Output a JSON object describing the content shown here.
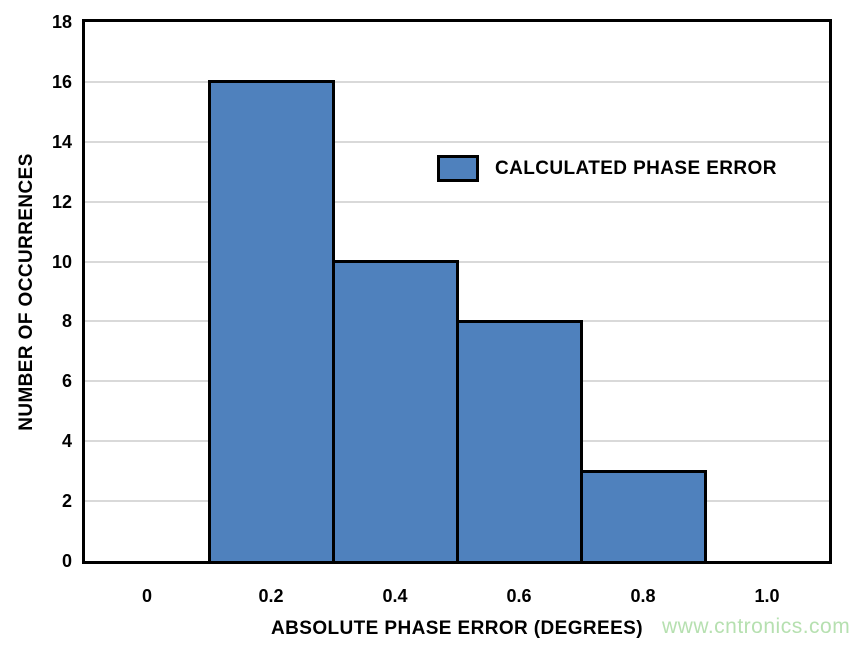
{
  "page": {
    "background": "#ffffff",
    "watermark": "www.cntronics.com",
    "watermark_color": "#b6e0b0"
  },
  "chart_data": {
    "type": "bar",
    "title": "",
    "xlabel": "ABSOLUTE PHASE ERROR (DEGREES)",
    "ylabel": "NUMBER OF OCCURRENCES",
    "bins": [
      {
        "x0": 0.1,
        "x1": 0.3,
        "count": 16
      },
      {
        "x0": 0.3,
        "x1": 0.5,
        "count": 10
      },
      {
        "x0": 0.5,
        "x1": 0.7,
        "count": 8
      },
      {
        "x0": 0.7,
        "x1": 0.9,
        "count": 3
      }
    ],
    "xlim": [
      -0.1,
      1.1
    ],
    "ylim": [
      0,
      18
    ],
    "xticks": [
      0,
      0.2,
      0.4,
      0.6,
      0.8,
      1.0
    ],
    "xtick_labels": [
      "0",
      "0.2",
      "0.4",
      "0.6",
      "0.8",
      "1.0"
    ],
    "yticks": [
      0,
      2,
      4,
      6,
      8,
      10,
      12,
      14,
      16,
      18
    ],
    "ytick_labels": [
      "0",
      "2",
      "4",
      "6",
      "8",
      "10",
      "12",
      "14",
      "16",
      "18"
    ],
    "grid": "horizontal",
    "gridline_color": "#d9d9d9",
    "bar_color": "#4f81bd",
    "bar_border_color": "#000000",
    "frame_color": "#000000",
    "legend": {
      "label": "CALCULATED PHASE ERROR",
      "swatch_color": "#4f81bd",
      "position": "inside-upper-middle"
    }
  }
}
